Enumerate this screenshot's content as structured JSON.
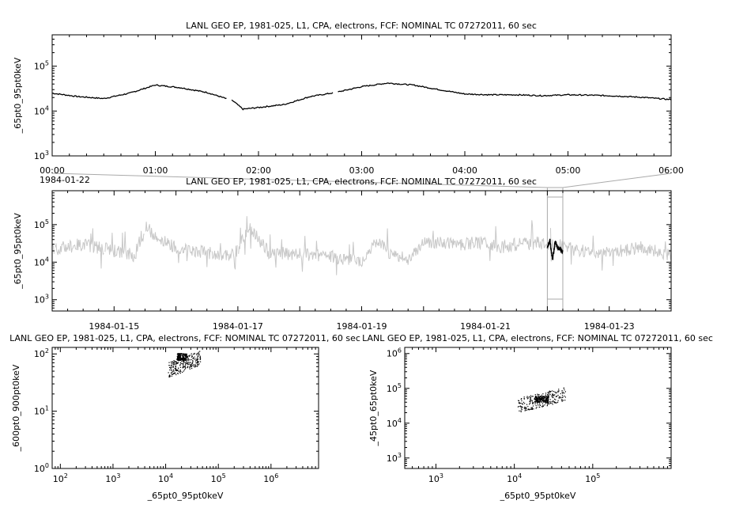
{
  "chart_data": [
    {
      "type": "line",
      "title": "LANL GEO EP, 1981-025, L1, CPA, electrons, FCF: NOMINAL TC 07272011, 60 sec",
      "ylabel": "_65pt0_95pt0keV",
      "yscale": "log",
      "ylim": [
        1000,
        500000
      ],
      "x_ticks": [
        "00:00",
        "01:00",
        "02:00",
        "03:00",
        "04:00",
        "05:00",
        "06:00"
      ],
      "x_date_label": "1984-01-22",
      "xlim_hours": [
        0,
        6
      ],
      "series": [
        {
          "color": "#000000",
          "x": [
            0,
            0.25,
            0.5,
            0.75,
            1.0,
            1.25,
            1.5,
            1.75,
            1.85,
            2.0,
            2.25,
            2.5,
            2.75,
            3.0,
            3.25,
            3.5,
            3.75,
            4.0,
            4.25,
            4.5,
            4.75,
            5.0,
            5.25,
            5.5,
            5.75,
            6.0
          ],
          "y": [
            25000,
            21000,
            19000,
            25000,
            38000,
            33000,
            26000,
            17000,
            11000,
            12000,
            14000,
            21000,
            26000,
            35000,
            42000,
            38000,
            30000,
            24000,
            23000,
            23000,
            22000,
            23000,
            22500,
            21500,
            20000,
            18000
          ]
        }
      ]
    },
    {
      "type": "line",
      "title": "LANL GEO EP, 1981-025, L1, CPA, electrons, FCF: NOMINAL TC 07272011, 60 sec",
      "ylabel": "_65pt0_95pt0keV",
      "yscale": "log",
      "ylim": [
        500,
        800000
      ],
      "x_ticks": [
        "1984-01-15",
        "1984-01-17",
        "1984-01-19",
        "1984-01-21",
        "1984-01-23"
      ],
      "x_start": "1984-01-14",
      "xlim_days": [
        "1984-01-14",
        "1984-01-24"
      ],
      "highlight_window": [
        "1984-01-22T00:00",
        "1984-01-22T06:00"
      ],
      "series": [
        {
          "color": "#c8c8c8",
          "x": [
            "1984-01-14T00:00",
            "1984-01-14T12:00",
            "1984-01-15T00:00",
            "1984-01-15T08:00",
            "1984-01-15T12:00",
            "1984-01-15T18:00",
            "1984-01-16T00:00",
            "1984-01-16T12:00",
            "1984-01-16T18:00",
            "1984-01-17T00:00",
            "1984-01-17T04:00",
            "1984-01-17T12:00",
            "1984-01-18T00:00",
            "1984-01-18T12:00",
            "1984-01-19T00:00",
            "1984-01-19T06:00",
            "1984-01-19T12:00",
            "1984-01-19T18:00",
            "1984-01-20T00:00",
            "1984-01-20T12:00",
            "1984-01-21T00:00",
            "1984-01-21T06:00",
            "1984-01-21T12:00",
            "1984-01-22T00:00",
            "1984-01-22T06:00",
            "1984-01-22T12:00",
            "1984-01-23T00:00",
            "1984-01-23T12:00",
            "1984-01-24T00:00"
          ],
          "y": [
            22000,
            30000,
            20000,
            15000,
            90000,
            40000,
            25000,
            18000,
            14000,
            20000,
            90000,
            18000,
            16000,
            14000,
            11000,
            35000,
            15000,
            12000,
            35000,
            30000,
            33000,
            25000,
            30000,
            33000,
            28000,
            20000,
            18000,
            25000,
            15000
          ]
        },
        {
          "color": "#000000",
          "x": [
            "1984-01-22T00:00",
            "1984-01-22T01:00",
            "1984-01-22T02:00",
            "1984-01-22T03:00",
            "1984-01-22T04:00",
            "1984-01-22T05:00",
            "1984-01-22T06:00"
          ],
          "y": [
            25000,
            38000,
            11000,
            35000,
            24000,
            23000,
            18000
          ]
        }
      ]
    },
    {
      "type": "scatter",
      "title": "LANL GEO EP, 1981-025, L1, CPA, electrons, FCF: NOMINAL TC 07272011, 60 sec",
      "xlabel": "_65pt0_95pt0keV",
      "ylabel": "_600pt0_900pt0keV",
      "xscale": "log",
      "yscale": "log",
      "xlim": [
        70,
        8000000
      ],
      "ylim": [
        1,
        130
      ],
      "x_ticks": [
        "10^2",
        "10^3",
        "10^4",
        "10^5",
        "10^6"
      ],
      "y_ticks": [
        "10^0",
        "10^1",
        "10^2"
      ],
      "cloud": {
        "x_range": [
          11000,
          45000
        ],
        "y_range": [
          35,
          110
        ],
        "dense_center": [
          20000,
          90
        ]
      }
    },
    {
      "type": "scatter",
      "title": "LANL GEO EP, 1981-025, L1, CPA, electrons, FCF: NOMINAL TC 07272011, 60 sec",
      "xlabel": "_65pt0_95pt0keV",
      "ylabel": "_45pt0_65pt0keV",
      "xscale": "log",
      "yscale": "log",
      "xlim": [
        400,
        1000000
      ],
      "ylim": [
        500,
        1500000
      ],
      "x_ticks": [
        "10^3",
        "10^4",
        "10^5"
      ],
      "y_ticks": [
        "10^3",
        "10^4",
        "10^5",
        "10^6"
      ],
      "cloud": {
        "x_range": [
          11000,
          45000
        ],
        "y_range": [
          18000,
          100000
        ],
        "dense_center": [
          22000,
          50000
        ]
      }
    }
  ]
}
